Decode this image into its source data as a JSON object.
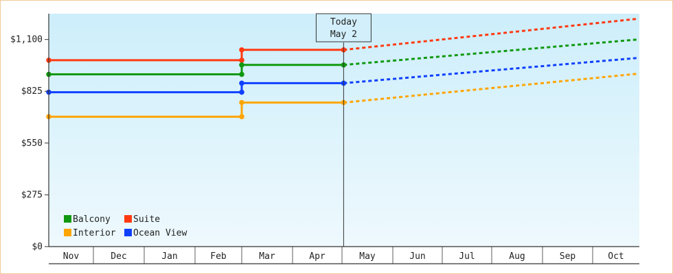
{
  "chart_data": {
    "type": "line",
    "title": "",
    "xlabel": "",
    "ylabel": "",
    "months": [
      "Nov",
      "Dec",
      "Jan",
      "Feb",
      "Mar",
      "Apr",
      "May",
      "Jun",
      "Jul",
      "Aug",
      "Sep",
      "Oct"
    ],
    "ylim": [
      0,
      1237
    ],
    "yticks": [
      0,
      275,
      550,
      825,
      1100
    ],
    "ytick_labels": [
      "$0",
      "$275",
      "$550",
      "$825",
      "$1,100"
    ],
    "today": {
      "line1": "Today",
      "line2": "May 2"
    },
    "colors": {
      "background_top": "#cdeefb",
      "background_bottom": "#eef9fd",
      "axis": "#333333"
    },
    "legend": {
      "placement": "bottom-left"
    },
    "series": [
      {
        "name": "Suite",
        "color": "#ff3a12",
        "historical": [
          [
            "Nov 1",
            990
          ],
          [
            "Mar 1",
            990
          ],
          [
            "Mar 1",
            1045
          ],
          [
            "May 2",
            1045
          ]
        ],
        "projected": [
          [
            "May 2",
            1045
          ],
          [
            "Oct 31",
            1210
          ]
        ]
      },
      {
        "name": "Balcony",
        "color": "#109910",
        "historical": [
          [
            "Nov 1",
            915
          ],
          [
            "Mar 1",
            915
          ],
          [
            "Mar 1",
            965
          ],
          [
            "May 2",
            965
          ]
        ],
        "projected": [
          [
            "May 2",
            965
          ],
          [
            "Oct 31",
            1100
          ]
        ]
      },
      {
        "name": "Ocean View",
        "color": "#1040ff",
        "historical": [
          [
            "Nov 1",
            820
          ],
          [
            "Mar 1",
            820
          ],
          [
            "Mar 1",
            868
          ],
          [
            "May 2",
            868
          ]
        ],
        "projected": [
          [
            "May 2",
            868
          ],
          [
            "Oct 31",
            1002
          ]
        ]
      },
      {
        "name": "Interior",
        "color": "#ffa500",
        "historical": [
          [
            "Nov 1",
            690
          ],
          [
            "Mar 1",
            690
          ],
          [
            "Mar 1",
            765
          ],
          [
            "May 2",
            765
          ]
        ],
        "projected": [
          [
            "May 2",
            765
          ],
          [
            "Oct 31",
            918
          ]
        ]
      }
    ],
    "legend_order": [
      "Balcony",
      "Suite",
      "Interior",
      "Ocean View"
    ]
  }
}
